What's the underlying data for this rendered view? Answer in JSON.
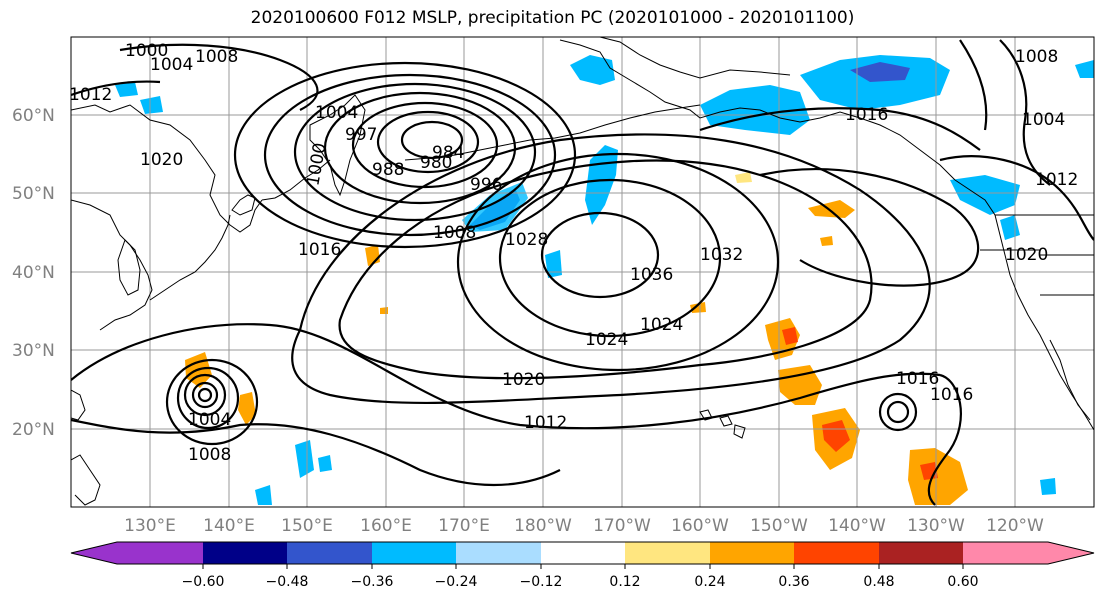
{
  "title": "2020100600 F012 MSLP, precipitation PC (2020101000 - 2020101100)",
  "map": {
    "lat_labels": [
      "60°N",
      "50°N",
      "40°N",
      "30°N",
      "20°N"
    ],
    "lon_labels": [
      "130°E",
      "140°E",
      "150°E",
      "160°E",
      "170°E",
      "180°W",
      "170°W",
      "160°W",
      "150°W",
      "140°W",
      "130°W",
      "120°W"
    ]
  },
  "isobar_labels": [
    "1000",
    "1004",
    "1008",
    "1012",
    "1004",
    "1020",
    "1000",
    "997",
    "988",
    "980",
    "984",
    "996",
    "1008",
    "1028",
    "1016",
    "1036",
    "1032",
    "1024",
    "1020",
    "1004",
    "1008",
    "1012",
    "1016",
    "1016",
    "1008",
    "1004",
    "1012",
    "1020",
    "1016",
    "1024"
  ],
  "colorbar": {
    "ticks": [
      "−0.60",
      "−0.48",
      "−0.36",
      "−0.24",
      "−0.12",
      "0.12",
      "0.24",
      "0.36",
      "0.48",
      "0.60"
    ],
    "colors": [
      "#9933cc",
      "#000088",
      "#3355cc",
      "#00bbff",
      "#aaddff",
      "#ffffff",
      "#ffe680",
      "#ffa500",
      "#ff4400",
      "#aa2222",
      "#ff88aa"
    ]
  }
}
